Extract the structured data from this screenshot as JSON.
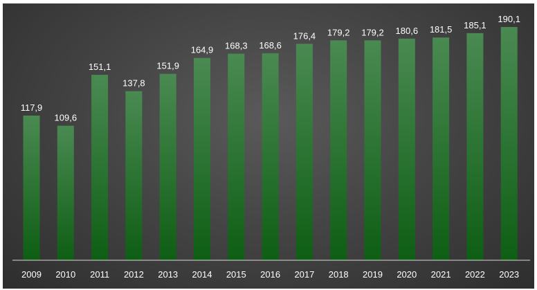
{
  "chart_data": {
    "type": "bar",
    "title": "",
    "xlabel": "",
    "ylabel": "",
    "categories": [
      "2009",
      "2010",
      "2011",
      "2012",
      "2013",
      "2014",
      "2015",
      "2016",
      "2017",
      "2018",
      "2019",
      "2020",
      "2021",
      "2022",
      "2023"
    ],
    "values": [
      117.9,
      109.6,
      151.1,
      137.8,
      151.9,
      164.9,
      168.3,
      168.6,
      176.4,
      179.2,
      179.2,
      180.6,
      181.5,
      185.1,
      190.1
    ],
    "value_labels": [
      "117,9",
      "109,6",
      "151,1",
      "137,8",
      "151,9",
      "164,9",
      "168,3",
      "168,6",
      "176,4",
      "179,2",
      "179,2",
      "180,6",
      "181,5",
      "185,1",
      "190,1"
    ],
    "ylim": [
      0,
      190.1
    ],
    "grid": false,
    "legend": "none",
    "colors": {
      "bar_top": "#4a8a52",
      "bar_bottom": "#0e5e14",
      "text": "#ffffff",
      "axis": "#d9d9d9",
      "background": "#3f3f3f"
    }
  }
}
